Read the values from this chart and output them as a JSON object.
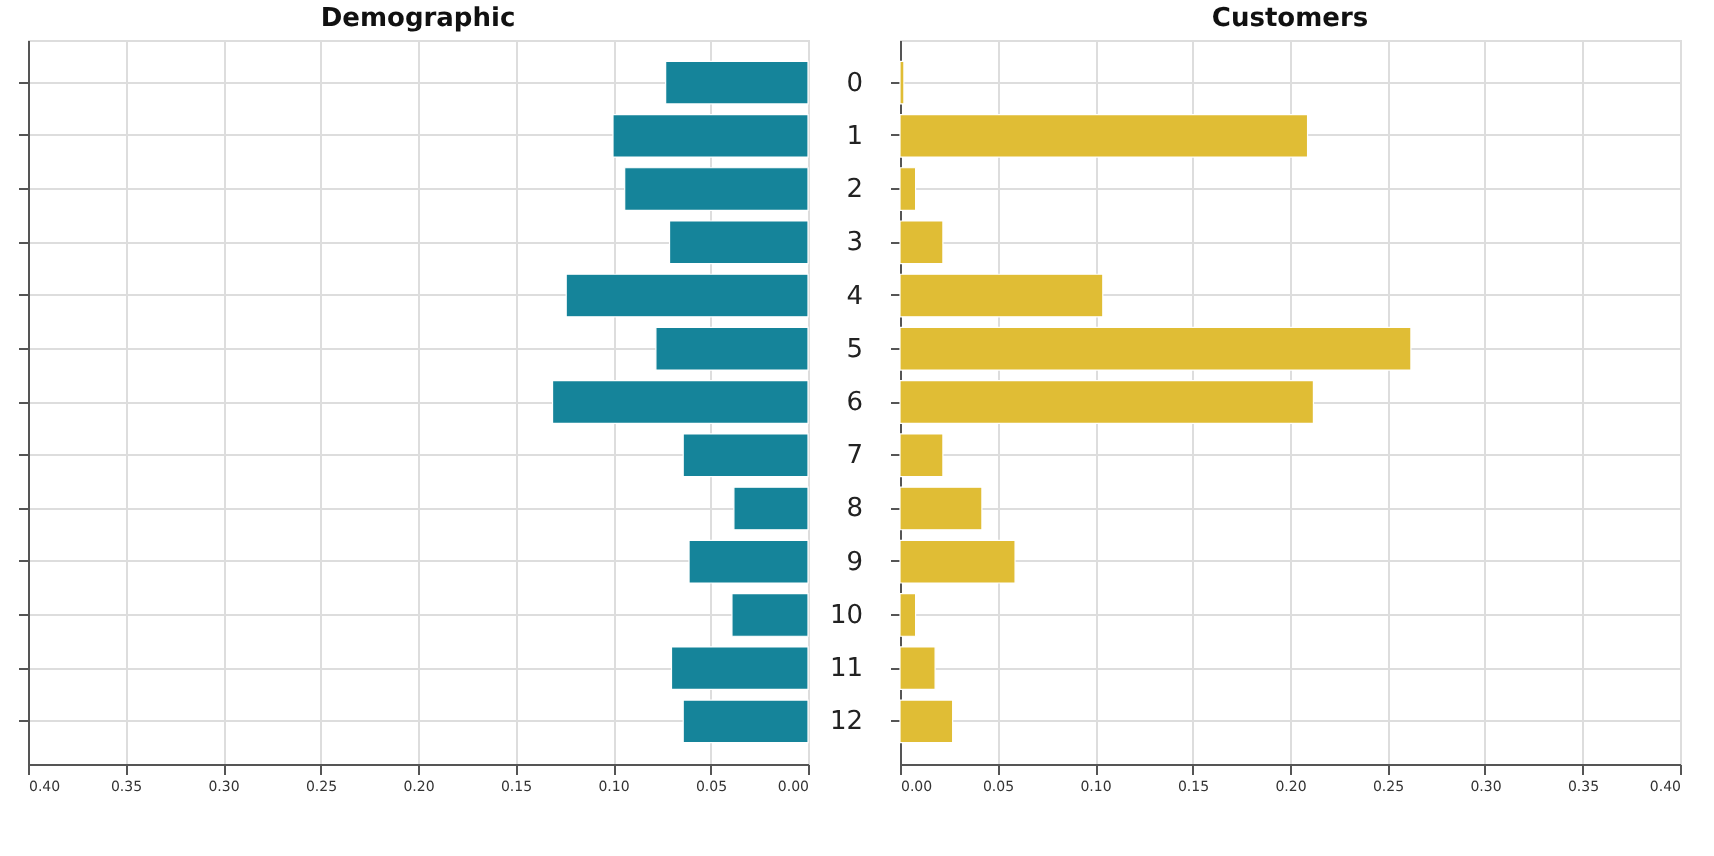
{
  "chart_data": [
    {
      "type": "bar",
      "orientation": "horizontal",
      "title": "Demographic",
      "categories": [
        "0",
        "1",
        "2",
        "3",
        "4",
        "5",
        "6",
        "7",
        "8",
        "9",
        "10",
        "11",
        "12"
      ],
      "color": "#15849a",
      "values": [
        0.073,
        0.1,
        0.094,
        0.071,
        0.124,
        0.078,
        0.131,
        0.064,
        0.038,
        0.061,
        0.039,
        0.07,
        0.064
      ],
      "xlim": [
        0.4,
        0.0
      ],
      "xticks": [
        {
          "value": 0.4,
          "label": "0.40"
        },
        {
          "value": 0.35,
          "label": "0.35"
        },
        {
          "value": 0.3,
          "label": "0.30"
        },
        {
          "value": 0.25,
          "label": "0.25"
        },
        {
          "value": 0.2,
          "label": "0.20"
        },
        {
          "value": 0.15,
          "label": "0.15"
        },
        {
          "value": 0.1,
          "label": "0.10"
        },
        {
          "value": 0.05,
          "label": "0.05"
        },
        {
          "value": 0.0,
          "label": "0.00"
        }
      ],
      "grid": true,
      "tick_labels": "x"
    },
    {
      "type": "bar",
      "orientation": "horizontal",
      "title": "Customers",
      "categories": [
        "0",
        "1",
        "2",
        "3",
        "4",
        "5",
        "6",
        "7",
        "8",
        "9",
        "10",
        "11",
        "12"
      ],
      "color": "#e0bd35",
      "values": [
        0.002,
        0.209,
        0.008,
        0.022,
        0.104,
        0.262,
        0.212,
        0.022,
        0.042,
        0.059,
        0.008,
        0.018,
        0.027
      ],
      "xlim": [
        0.0,
        0.4
      ],
      "xticks": [
        {
          "value": 0.0,
          "label": "0.00"
        },
        {
          "value": 0.05,
          "label": "0.05"
        },
        {
          "value": 0.1,
          "label": "0.10"
        },
        {
          "value": 0.15,
          "label": "0.15"
        },
        {
          "value": 0.2,
          "label": "0.20"
        },
        {
          "value": 0.25,
          "label": "0.25"
        },
        {
          "value": 0.3,
          "label": "0.30"
        },
        {
          "value": 0.35,
          "label": "0.35"
        },
        {
          "value": 0.4,
          "label": "0.40"
        }
      ],
      "grid": true
    }
  ]
}
